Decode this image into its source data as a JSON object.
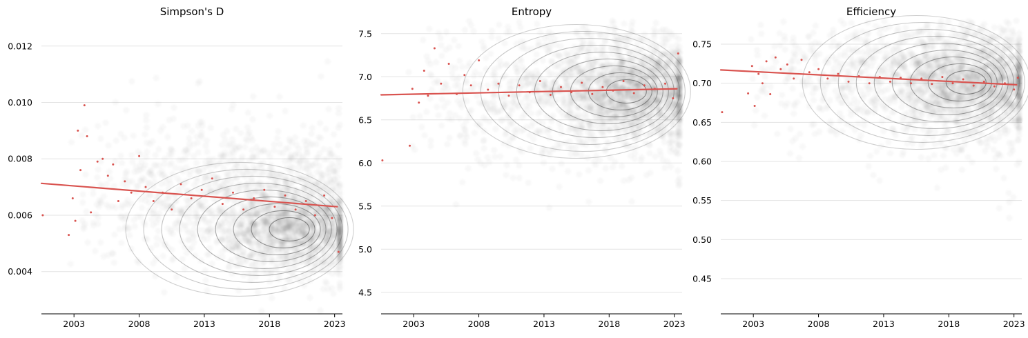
{
  "colors": {
    "cloud": "#000000",
    "contour": "#333333",
    "monthly_points": "#d9534f",
    "trend_line": "#d9534f",
    "grid": "#e3e3e3",
    "axis": "#000000"
  },
  "chart_data": [
    {
      "type": "scatter",
      "title": "Simpson's D",
      "xlabel": "",
      "ylabel": "",
      "xlim": [
        2000.5,
        2023.6
      ],
      "ylim": [
        0.0025,
        0.0129
      ],
      "x_ticks": [
        2003,
        2008,
        2013,
        2018,
        2023
      ],
      "x_tick_labels": [
        "2003",
        "2008",
        "2013",
        "2018",
        "2023"
      ],
      "y_ticks": [
        0.004,
        0.006,
        0.008,
        0.01,
        0.012
      ],
      "y_tick_labels": [
        "0.004",
        "0.006",
        "0.008",
        "0.010",
        "0.012"
      ],
      "grid": "horizontal",
      "trend_line": {
        "x": [
          2000.5,
          2023.2
        ],
        "y": [
          0.00713,
          0.0063
        ]
      },
      "density_peak": {
        "x": 2020.0,
        "y": 0.0055
      },
      "monthly_means": {
        "x": [
          2000.6,
          2002.6,
          2002.9,
          2003.1,
          2003.3,
          2003.5,
          2003.8,
          2004.0,
          2004.3,
          2004.8,
          2005.2,
          2005.6,
          2006.0,
          2006.4,
          2006.9,
          2007.4,
          2008.0,
          2008.5,
          2009.1,
          2009.8,
          2010.5,
          2011.2,
          2012.0,
          2012.8,
          2013.6,
          2014.4,
          2015.2,
          2016.0,
          2016.8,
          2017.6,
          2018.4,
          2019.2,
          2020.0,
          2020.8,
          2021.5,
          2022.2,
          2022.8,
          2023.3
        ],
        "y": [
          0.006,
          0.0053,
          0.0066,
          0.0058,
          0.009,
          0.0076,
          0.0099,
          0.0088,
          0.0061,
          0.0079,
          0.008,
          0.0074,
          0.0078,
          0.0065,
          0.0072,
          0.0068,
          0.0081,
          0.007,
          0.0065,
          0.0068,
          0.0062,
          0.0071,
          0.0066,
          0.0069,
          0.0073,
          0.0064,
          0.0068,
          0.0062,
          0.0066,
          0.0069,
          0.0063,
          0.0067,
          0.0062,
          0.0065,
          0.006,
          0.0067,
          0.0059,
          0.0047
        ]
      }
    },
    {
      "type": "scatter",
      "title": "Entropy",
      "xlabel": "",
      "ylabel": "",
      "xlim": [
        2000.5,
        2023.6
      ],
      "ylim": [
        4.25,
        7.65
      ],
      "x_ticks": [
        2003,
        2008,
        2013,
        2018,
        2023
      ],
      "x_tick_labels": [
        "2003",
        "2008",
        "2013",
        "2018",
        "2023"
      ],
      "y_ticks": [
        4.5,
        5.0,
        5.5,
        6.0,
        6.5,
        7.0,
        7.5
      ],
      "y_tick_labels": [
        "4.5",
        "5.0",
        "5.5",
        "6.0",
        "6.5",
        "7.0",
        "7.5"
      ],
      "grid": "horizontal",
      "trend_line": {
        "x": [
          2000.5,
          2023.2
        ],
        "y": [
          6.79,
          6.86
        ]
      },
      "density_peak": {
        "x": 2019.8,
        "y": 6.83
      },
      "monthly_means": {
        "x": [
          2000.6,
          2002.7,
          2002.9,
          2003.4,
          2003.8,
          2004.1,
          2004.6,
          2005.1,
          2005.7,
          2006.3,
          2006.9,
          2007.4,
          2008.0,
          2008.7,
          2009.5,
          2010.3,
          2011.1,
          2011.9,
          2012.7,
          2013.5,
          2014.3,
          2015.1,
          2015.9,
          2016.7,
          2017.5,
          2018.3,
          2019.1,
          2019.9,
          2020.7,
          2021.5,
          2022.3,
          2022.9,
          2023.3
        ],
        "y": [
          6.03,
          6.2,
          6.86,
          6.7,
          7.07,
          6.78,
          7.33,
          6.92,
          7.15,
          6.8,
          7.02,
          6.9,
          7.19,
          6.85,
          6.92,
          6.78,
          6.9,
          6.82,
          6.95,
          6.79,
          6.88,
          6.82,
          6.93,
          6.8,
          6.88,
          6.84,
          6.95,
          6.81,
          6.9,
          6.86,
          6.92,
          6.75,
          7.27
        ]
      }
    },
    {
      "type": "scatter",
      "title": "Efficiency",
      "xlabel": "",
      "ylabel": "",
      "xlim": [
        2000.5,
        2023.6
      ],
      "ylim": [
        0.405,
        0.78
      ],
      "x_ticks": [
        2003,
        2008,
        2013,
        2018,
        2023
      ],
      "x_tick_labels": [
        "2003",
        "2008",
        "2013",
        "2018",
        "2023"
      ],
      "y_ticks": [
        0.45,
        0.5,
        0.55,
        0.6,
        0.65,
        0.7,
        0.75
      ],
      "y_tick_labels": [
        "0.45",
        "0.50",
        "0.55",
        "0.60",
        "0.65",
        "0.70",
        "0.75"
      ],
      "grid": "horizontal",
      "trend_line": {
        "x": [
          2000.5,
          2023.2
        ],
        "y": [
          0.717,
          0.698
        ]
      },
      "density_peak": {
        "x": 2019.8,
        "y": 0.701
      },
      "monthly_means": {
        "x": [
          2000.6,
          2002.6,
          2002.9,
          2003.1,
          2003.4,
          2003.7,
          2004.0,
          2004.3,
          2004.7,
          2005.1,
          2005.6,
          2006.1,
          2006.7,
          2007.3,
          2008.0,
          2008.7,
          2009.5,
          2010.3,
          2011.1,
          2011.9,
          2012.7,
          2013.5,
          2014.3,
          2015.1,
          2015.9,
          2016.7,
          2017.5,
          2018.3,
          2019.1,
          2019.9,
          2020.7,
          2021.5,
          2022.3,
          2023.0,
          2023.3
        ],
        "y": [
          0.663,
          0.687,
          0.722,
          0.671,
          0.712,
          0.7,
          0.728,
          0.686,
          0.733,
          0.718,
          0.724,
          0.706,
          0.73,
          0.714,
          0.718,
          0.706,
          0.712,
          0.702,
          0.709,
          0.7,
          0.708,
          0.702,
          0.707,
          0.7,
          0.706,
          0.699,
          0.708,
          0.7,
          0.705,
          0.697,
          0.702,
          0.696,
          0.7,
          0.692,
          0.707
        ]
      }
    }
  ]
}
